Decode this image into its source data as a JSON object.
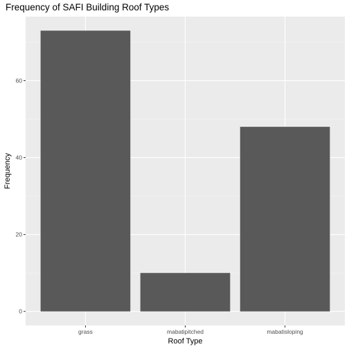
{
  "chart_data": {
    "type": "bar",
    "title": "Frequency of SAFI Building Roof Types",
    "xlabel": "Roof Type",
    "ylabel": "Frequency",
    "categories": [
      "grass",
      "mabatipitched",
      "mabatisloping"
    ],
    "values": [
      73,
      10,
      48
    ],
    "yticks": [
      0,
      20,
      40,
      60
    ],
    "ylim": [
      -3.65,
      76.65
    ],
    "grid": true,
    "legend": "none",
    "colors": {
      "panel": "#ebebeb",
      "grid_major": "#ffffff",
      "bar": "#595959",
      "tick_text": "#4d4d4d"
    }
  }
}
